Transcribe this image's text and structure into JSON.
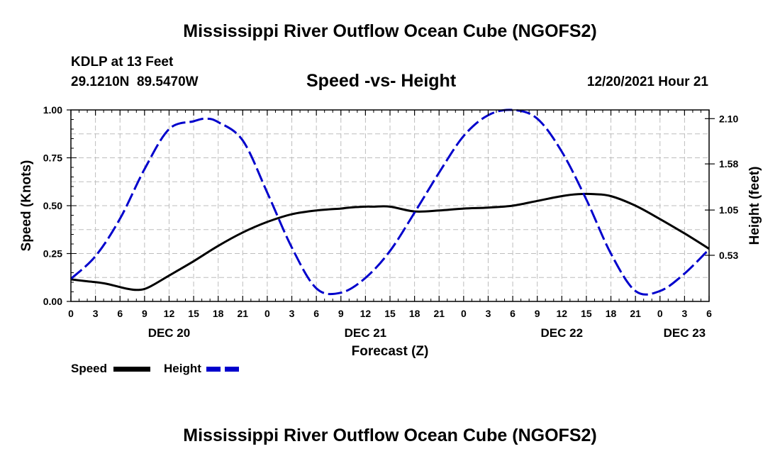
{
  "page": {
    "title": "Mississippi River Outflow Ocean Cube (NGOFS2)",
    "bottom_title": "Mississippi River Outflow Ocean Cube (NGOFS2)"
  },
  "header": {
    "station": "KDLP at 13 Feet",
    "coords": "29.1210N  89.5470W",
    "subtitle": "Speed -vs- Height",
    "datetime": "12/20/2021 Hour 21"
  },
  "chart_data": {
    "type": "line",
    "title": "Speed -vs- Height",
    "xlabel": "Forecast (Z)",
    "ylabel": "Speed (Knots)",
    "y2label": "Height (feet)",
    "xlim": [
      0,
      78
    ],
    "ylim": [
      0,
      1.0
    ],
    "y2lim": [
      0,
      2.2
    ],
    "grid": true,
    "x_ticks": [
      0,
      3,
      6,
      9,
      12,
      15,
      18,
      21,
      24,
      27,
      30,
      33,
      36,
      39,
      42,
      45,
      48,
      51,
      54,
      57,
      60,
      63,
      66,
      69,
      72,
      75,
      78
    ],
    "x_tick_labels": [
      "0",
      "3",
      "6",
      "9",
      "12",
      "15",
      "18",
      "21",
      "0",
      "3",
      "6",
      "9",
      "12",
      "15",
      "18",
      "21",
      "0",
      "3",
      "6",
      "9",
      "12",
      "15",
      "18",
      "21",
      "0",
      "3",
      "6"
    ],
    "date_labels": [
      {
        "x": 12,
        "label": "DEC 20"
      },
      {
        "x": 36,
        "label": "DEC 21"
      },
      {
        "x": 60,
        "label": "DEC 22"
      },
      {
        "x": 75,
        "label": "DEC 23"
      }
    ],
    "y_ticks": [
      0,
      0.25,
      0.5,
      0.75,
      1.0
    ],
    "y_tick_labels": [
      "0.00",
      "0.25",
      "0.50",
      "0.75",
      "1.00"
    ],
    "y2_ticks": [
      0.53,
      1.05,
      1.58,
      2.1
    ],
    "y2_tick_labels": [
      "0.53",
      "1.05",
      "1.58",
      "2.10"
    ],
    "series": [
      {
        "name": "Speed",
        "axis": "left",
        "color": "#000000",
        "style": "solid",
        "x": [
          0,
          2,
          4,
          6,
          7,
          8,
          9,
          10,
          12,
          15,
          18,
          21,
          24,
          27,
          30,
          33,
          34,
          36,
          37,
          39,
          42,
          45,
          48,
          51,
          54,
          57,
          60,
          62,
          64,
          66,
          69,
          72,
          75,
          78
        ],
        "values": [
          0.115,
          0.105,
          0.095,
          0.075,
          0.065,
          0.06,
          0.065,
          0.085,
          0.135,
          0.21,
          0.29,
          0.36,
          0.415,
          0.455,
          0.475,
          0.485,
          0.49,
          0.495,
          0.495,
          0.495,
          0.47,
          0.475,
          0.485,
          0.49,
          0.5,
          0.525,
          0.55,
          0.56,
          0.56,
          0.55,
          0.5,
          0.43,
          0.355,
          0.275
        ]
      },
      {
        "name": "Height",
        "axis": "right",
        "color": "#0000cc",
        "style": "dashed",
        "x": [
          0,
          3,
          6,
          9,
          12,
          15,
          16.5,
          18,
          21,
          24,
          27,
          30,
          33,
          36,
          39,
          42,
          45,
          48,
          51,
          54,
          57,
          60,
          63,
          66,
          69,
          72,
          75,
          78
        ],
        "values": [
          0.26,
          0.52,
          0.95,
          1.52,
          1.98,
          2.07,
          2.1,
          2.06,
          1.85,
          1.25,
          0.62,
          0.15,
          0.1,
          0.27,
          0.58,
          1.02,
          1.48,
          1.9,
          2.14,
          2.2,
          2.1,
          1.72,
          1.17,
          0.55,
          0.12,
          0.12,
          0.32,
          0.6
        ]
      }
    ],
    "legend": [
      {
        "name": "Speed",
        "color": "#000000",
        "style": "solid"
      },
      {
        "name": "Height",
        "color": "#0000cc",
        "style": "dashed"
      }
    ]
  }
}
